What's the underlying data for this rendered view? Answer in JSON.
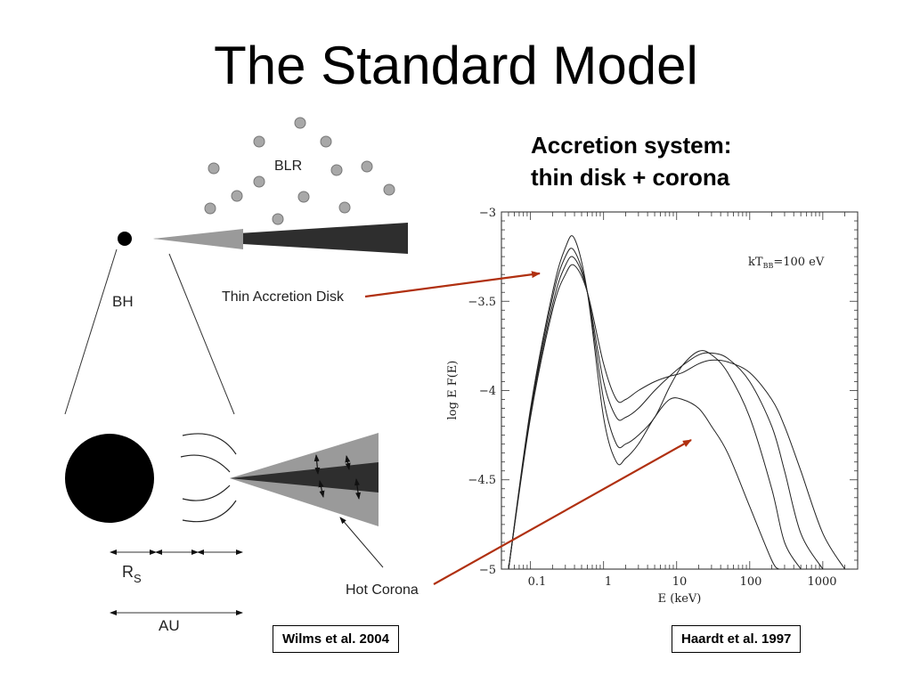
{
  "slide": {
    "title": "The Standard Model"
  },
  "subtitle": {
    "line1": "Accretion system:",
    "line2": "thin disk + corona"
  },
  "diagram": {
    "blr_label": "BLR",
    "bh_label": "BH",
    "disk_label": "Thin Accretion Disk",
    "corona_label": "Hot Corona",
    "rs_label": "R",
    "rs_sub": "S",
    "au_label": "AU",
    "citation": "Wilms et al. 2004"
  },
  "plot": {
    "citation": "Haardt et al. 1997",
    "annotation_main": "kT",
    "annotation_sub": "BB",
    "annotation_tail": "=100  eV",
    "xlabel": "E (keV)",
    "ylabel": "log E F(E)",
    "x_ticks": [
      "0.1",
      "1",
      "10",
      "100",
      "1000"
    ],
    "y_ticks": [
      "−3",
      "−3.5",
      "−4",
      "−4.5",
      "−5"
    ]
  },
  "colors": {
    "arrow": "#b03010",
    "disk_dark": "#2e2e2e",
    "disk_light": "#9a9a9a",
    "cloud": "#a8a8a8"
  },
  "chart_data": {
    "type": "line",
    "xscale": "log",
    "xlim": [
      0.04,
      3000
    ],
    "ylim": [
      -5,
      -3
    ],
    "xlabel": "E (keV)",
    "ylabel": "log E F(E)",
    "series": [
      {
        "x": [
          0.05,
          0.1,
          0.2,
          0.3,
          0.4,
          0.6,
          1,
          1.5,
          2,
          3,
          5,
          8,
          12,
          20,
          30,
          50,
          100,
          200,
          300,
          500,
          1000,
          2000
        ],
        "y": [
          -5.0,
          -4.15,
          -3.55,
          -3.35,
          -3.3,
          -3.45,
          -3.85,
          -4.05,
          -4.05,
          -4.0,
          -3.95,
          -3.92,
          -3.9,
          -3.85,
          -3.83,
          -3.84,
          -3.9,
          -4.05,
          -4.2,
          -4.45,
          -4.8,
          -5.0
        ]
      },
      {
        "x": [
          0.05,
          0.1,
          0.2,
          0.3,
          0.4,
          0.6,
          1,
          1.5,
          2,
          3,
          5,
          8,
          12,
          20,
          30,
          50,
          100,
          200,
          300,
          500,
          1000
        ],
        "y": [
          -5.0,
          -4.13,
          -3.52,
          -3.3,
          -3.26,
          -3.45,
          -3.95,
          -4.15,
          -4.15,
          -4.1,
          -4.0,
          -3.92,
          -3.86,
          -3.8,
          -3.79,
          -3.82,
          -3.95,
          -4.2,
          -4.45,
          -4.8,
          -5.0
        ]
      },
      {
        "x": [
          0.05,
          0.1,
          0.2,
          0.3,
          0.4,
          0.6,
          1,
          1.5,
          2,
          3,
          5,
          8,
          12,
          20,
          30,
          50,
          100,
          200,
          300,
          500
        ],
        "y": [
          -5.0,
          -4.12,
          -3.48,
          -3.25,
          -3.22,
          -3.45,
          -4.05,
          -4.3,
          -4.3,
          -4.25,
          -4.15,
          -3.98,
          -3.86,
          -3.78,
          -3.8,
          -3.9,
          -4.15,
          -4.55,
          -4.85,
          -5.0
        ]
      },
      {
        "x": [
          0.05,
          0.1,
          0.2,
          0.3,
          0.4,
          0.6,
          1,
          1.5,
          2,
          3,
          5,
          8,
          12,
          20,
          30,
          50,
          100,
          200,
          250
        ],
        "y": [
          -5.0,
          -4.1,
          -3.45,
          -3.2,
          -3.15,
          -3.45,
          -4.15,
          -4.4,
          -4.38,
          -4.3,
          -4.15,
          -4.05,
          -4.05,
          -4.1,
          -4.2,
          -4.35,
          -4.65,
          -4.95,
          -5.0
        ]
      }
    ]
  }
}
